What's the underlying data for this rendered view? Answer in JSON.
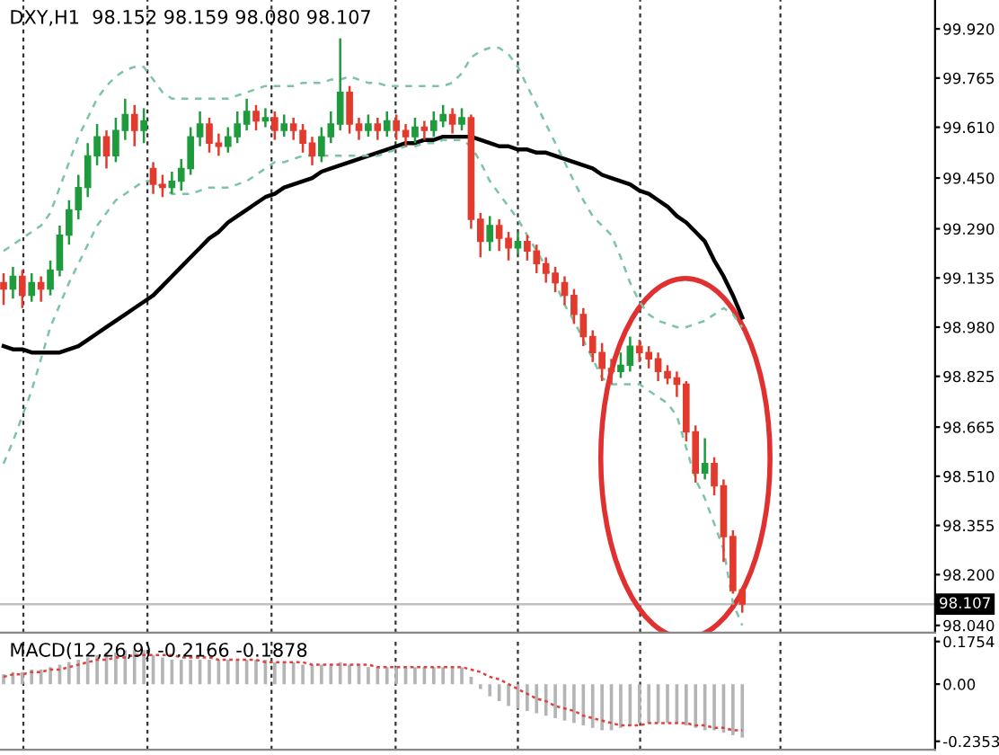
{
  "chart_data": [
    {
      "type": "candlestick",
      "title": "DXY,H1  98.152 98.159 98.080 98.107",
      "categories": [
        null,
        null,
        null,
        null,
        null,
        null,
        null,
        null,
        null,
        null,
        null,
        null,
        null,
        null,
        null,
        null,
        null,
        null,
        null,
        null,
        null,
        null,
        null,
        null,
        null,
        null,
        null,
        null,
        null,
        null,
        null,
        null,
        null,
        null,
        null,
        null,
        null,
        null,
        null,
        null,
        null,
        null,
        null,
        null,
        null,
        null,
        null,
        null,
        null,
        null,
        null,
        null,
        null,
        null,
        null,
        null,
        null,
        null,
        null,
        null,
        null,
        null,
        null,
        null,
        null,
        null,
        null,
        null,
        null,
        null,
        null,
        null,
        null,
        null,
        null,
        null,
        null,
        null,
        null,
        null
      ],
      "ohlc": [
        [
          99.12,
          99.15,
          99.05,
          99.1
        ],
        [
          99.1,
          99.17,
          99.07,
          99.14
        ],
        [
          99.14,
          99.16,
          99.04,
          99.08
        ],
        [
          99.08,
          99.15,
          99.06,
          99.12
        ],
        [
          99.12,
          99.14,
          99.06,
          99.1
        ],
        [
          99.1,
          99.19,
          99.08,
          99.16
        ],
        [
          99.16,
          99.3,
          99.14,
          99.27
        ],
        [
          99.27,
          99.38,
          99.24,
          99.35
        ],
        [
          99.35,
          99.46,
          99.32,
          99.42
        ],
        [
          99.42,
          99.56,
          99.39,
          99.52
        ],
        [
          99.52,
          99.62,
          99.49,
          99.58
        ],
        [
          99.58,
          99.6,
          99.48,
          99.52
        ],
        [
          99.52,
          99.64,
          99.5,
          99.6
        ],
        [
          99.6,
          99.7,
          99.57,
          99.65
        ],
        [
          99.65,
          99.68,
          99.55,
          99.6
        ],
        [
          99.6,
          99.67,
          99.56,
          99.63
        ],
        [
          99.48,
          99.5,
          99.4,
          99.43
        ],
        [
          99.43,
          99.46,
          99.39,
          99.42
        ],
        [
          99.42,
          99.47,
          99.4,
          99.44
        ],
        [
          99.44,
          99.51,
          99.41,
          99.48
        ],
        [
          99.48,
          99.61,
          99.46,
          99.58
        ],
        [
          99.58,
          99.66,
          99.55,
          99.62
        ],
        [
          99.62,
          99.64,
          99.53,
          99.56
        ],
        [
          99.56,
          99.59,
          99.52,
          99.55
        ],
        [
          99.55,
          99.61,
          99.53,
          99.58
        ],
        [
          99.58,
          99.66,
          99.56,
          99.62
        ],
        [
          99.62,
          99.7,
          99.6,
          99.66
        ],
        [
          99.66,
          99.68,
          99.6,
          99.63
        ],
        [
          99.63,
          99.67,
          99.61,
          99.64
        ],
        [
          99.64,
          99.66,
          99.57,
          99.6
        ],
        [
          99.6,
          99.65,
          99.58,
          99.62
        ],
        [
          99.62,
          99.64,
          99.57,
          99.6
        ],
        [
          99.6,
          99.62,
          99.53,
          99.56
        ],
        [
          99.56,
          99.58,
          99.49,
          99.52
        ],
        [
          99.52,
          99.61,
          99.5,
          99.58
        ],
        [
          99.58,
          99.66,
          99.56,
          99.62
        ],
        [
          99.62,
          99.89,
          99.6,
          99.72
        ],
        [
          99.72,
          99.74,
          99.59,
          99.62
        ],
        [
          99.62,
          99.64,
          99.57,
          99.6
        ],
        [
          99.6,
          99.65,
          99.58,
          99.62
        ],
        [
          99.62,
          99.64,
          99.57,
          99.6
        ],
        [
          99.6,
          99.66,
          99.58,
          99.63
        ],
        [
          99.63,
          99.65,
          99.57,
          99.6
        ],
        [
          99.6,
          99.62,
          99.55,
          99.58
        ],
        [
          99.58,
          99.64,
          99.56,
          99.61
        ],
        [
          99.61,
          99.63,
          99.57,
          99.6
        ],
        [
          99.6,
          99.66,
          99.58,
          99.63
        ],
        [
          99.63,
          99.68,
          99.61,
          99.65
        ],
        [
          99.65,
          99.67,
          99.59,
          99.62
        ],
        [
          99.62,
          99.67,
          99.6,
          99.64
        ],
        [
          99.64,
          99.65,
          99.29,
          99.32
        ],
        [
          99.32,
          99.34,
          99.2,
          99.25
        ],
        [
          99.25,
          99.33,
          99.22,
          99.3
        ],
        [
          99.3,
          99.32,
          99.22,
          99.26
        ],
        [
          99.26,
          99.28,
          99.19,
          99.23
        ],
        [
          99.23,
          99.28,
          99.21,
          99.25
        ],
        [
          99.25,
          99.27,
          99.19,
          99.22
        ],
        [
          99.22,
          99.24,
          99.15,
          99.18
        ],
        [
          99.18,
          99.2,
          99.12,
          99.15
        ],
        [
          99.15,
          99.17,
          99.09,
          99.12
        ],
        [
          99.12,
          99.14,
          99.05,
          99.08
        ],
        [
          99.08,
          99.1,
          98.99,
          99.02
        ],
        [
          99.02,
          99.04,
          98.92,
          98.95
        ],
        [
          98.95,
          98.97,
          98.87,
          98.9
        ],
        [
          98.9,
          98.93,
          98.81,
          98.85
        ],
        [
          98.85,
          98.88,
          98.8,
          98.84
        ],
        [
          98.84,
          98.9,
          98.82,
          98.86
        ],
        [
          98.86,
          98.95,
          98.84,
          98.92
        ],
        [
          98.92,
          98.94,
          98.87,
          98.9
        ],
        [
          98.9,
          98.92,
          98.85,
          98.88
        ],
        [
          98.88,
          98.9,
          98.81,
          98.84
        ],
        [
          98.84,
          98.86,
          98.8,
          98.82
        ],
        [
          98.82,
          98.84,
          98.76,
          98.8
        ],
        [
          98.8,
          98.81,
          98.62,
          98.65
        ],
        [
          98.65,
          98.67,
          98.49,
          98.52
        ],
        [
          98.52,
          98.63,
          98.5,
          98.55
        ],
        [
          98.55,
          98.57,
          98.45,
          98.48
        ],
        [
          98.48,
          98.5,
          98.24,
          98.32
        ],
        [
          98.32,
          98.34,
          98.14,
          98.15
        ],
        [
          98.152,
          98.159,
          98.08,
          98.107
        ]
      ],
      "colors": [
        "#e23b2e",
        "#1e9b3c",
        "#e23b2e",
        "#1e9b3c",
        "#e23b2e",
        "#1e9b3c",
        "#1e9b3c",
        "#1e9b3c",
        "#1e9b3c",
        "#1e9b3c",
        "#1e9b3c",
        "#e23b2e",
        "#1e9b3c",
        "#1e9b3c",
        "#e23b2e",
        "#1e9b3c",
        "#e23b2e",
        "#e23b2e",
        "#1e9b3c",
        "#1e9b3c",
        "#1e9b3c",
        "#1e9b3c",
        "#e23b2e",
        "#e23b2e",
        "#1e9b3c",
        "#1e9b3c",
        "#1e9b3c",
        "#e23b2e",
        "#1e9b3c",
        "#e23b2e",
        "#1e9b3c",
        "#e23b2e",
        "#e23b2e",
        "#e23b2e",
        "#1e9b3c",
        "#1e9b3c",
        "#1e9b3c",
        "#e23b2e",
        "#e23b2e",
        "#1e9b3c",
        "#e23b2e",
        "#1e9b3c",
        "#e23b2e",
        "#e23b2e",
        "#1e9b3c",
        "#e23b2e",
        "#1e9b3c",
        "#1e9b3c",
        "#e23b2e",
        "#1e9b3c",
        "#e23b2e",
        "#e23b2e",
        "#1e9b3c",
        "#e23b2e",
        "#e23b2e",
        "#1e9b3c",
        "#e23b2e",
        "#e23b2e",
        "#e23b2e",
        "#e23b2e",
        "#e23b2e",
        "#e23b2e",
        "#e23b2e",
        "#e23b2e",
        "#e23b2e",
        "#e23b2e",
        "#1e9b3c",
        "#1e9b3c",
        "#e23b2e",
        "#e23b2e",
        "#e23b2e",
        "#e23b2e",
        "#e23b2e",
        "#e23b2e",
        "#e23b2e",
        "#1e9b3c",
        "#e23b2e",
        "#e23b2e",
        "#e23b2e",
        "#e23b2e"
      ],
      "series": [
        {
          "type": "line",
          "color": "#000000",
          "line_style": "solid",
          "values": [
            98.92,
            98.91,
            98.91,
            98.9,
            98.9,
            98.9,
            98.9,
            98.91,
            98.92,
            98.94,
            98.96,
            98.98,
            99.0,
            99.02,
            99.04,
            99.06,
            99.08,
            99.11,
            99.14,
            99.17,
            99.2,
            99.23,
            99.26,
            99.28,
            99.31,
            99.33,
            99.35,
            99.37,
            99.39,
            99.4,
            99.42,
            99.43,
            99.44,
            99.45,
            99.47,
            99.48,
            99.49,
            99.5,
            99.51,
            99.52,
            99.53,
            99.54,
            99.55,
            99.56,
            99.56,
            99.57,
            99.57,
            99.58,
            99.58,
            99.58,
            99.58,
            99.57,
            99.56,
            99.55,
            99.55,
            99.54,
            99.54,
            99.53,
            99.53,
            99.52,
            99.51,
            99.5,
            99.49,
            99.48,
            99.46,
            99.45,
            99.44,
            99.43,
            99.41,
            99.4,
            99.38,
            99.36,
            99.33,
            99.31,
            99.28,
            99.25,
            99.19,
            99.14,
            99.08,
            99.01
          ]
        },
        {
          "type": "line",
          "color": "#7cc4a4",
          "line_style": "dashed",
          "values": [
            99.22,
            99.24,
            99.26,
            99.28,
            99.3,
            99.34,
            99.42,
            99.5,
            99.58,
            99.64,
            99.7,
            99.74,
            99.77,
            99.79,
            99.8,
            99.8,
            99.76,
            99.72,
            99.7,
            99.7,
            99.7,
            99.7,
            99.7,
            99.7,
            99.7,
            99.71,
            99.72,
            99.73,
            99.74,
            99.74,
            99.74,
            99.74,
            99.75,
            99.75,
            99.75,
            99.76,
            99.76,
            99.77,
            99.76,
            99.75,
            99.75,
            99.74,
            99.74,
            99.74,
            99.74,
            99.74,
            99.74,
            99.74,
            99.75,
            99.78,
            99.83,
            99.85,
            99.86,
            99.86,
            99.84,
            99.8,
            99.74,
            99.68,
            99.62,
            99.56,
            99.5,
            99.44,
            99.38,
            99.33,
            99.3,
            99.27,
            99.2,
            99.12,
            99.06,
            99.02,
            99.0,
            98.99,
            98.98,
            98.98,
            98.99,
            99.0,
            99.02,
            99.04,
            99.02,
            98.98
          ]
        },
        {
          "type": "line",
          "color": "#7cc4a4",
          "line_style": "dashed",
          "values": [
            98.55,
            98.62,
            98.7,
            98.78,
            98.88,
            98.98,
            99.05,
            99.12,
            99.18,
            99.24,
            99.3,
            99.34,
            99.38,
            99.4,
            99.42,
            99.44,
            99.44,
            99.42,
            99.4,
            99.4,
            99.4,
            99.41,
            99.42,
            99.42,
            99.42,
            99.43,
            99.44,
            99.46,
            99.48,
            99.5,
            99.5,
            99.51,
            99.52,
            99.52,
            99.52,
            99.52,
            99.52,
            99.52,
            99.52,
            99.52,
            99.52,
            99.53,
            99.54,
            99.55,
            99.55,
            99.56,
            99.56,
            99.57,
            99.57,
            99.57,
            99.55,
            99.5,
            99.44,
            99.4,
            99.36,
            99.32,
            99.27,
            99.22,
            99.17,
            99.12,
            99.05,
            99.0,
            98.94,
            98.88,
            98.82,
            98.8,
            98.8,
            98.8,
            98.8,
            98.78,
            98.76,
            98.74,
            98.7,
            98.6,
            98.5,
            98.44,
            98.36,
            98.28,
            98.11,
            98.04
          ]
        }
      ],
      "ylim": [
        98.017,
        100.011
      ],
      "yticks": [
        {
          "value": 99.92,
          "label": "99.920"
        },
        {
          "value": 99.765,
          "label": "99.765"
        },
        {
          "value": 99.61,
          "label": "99.610"
        },
        {
          "value": 99.45,
          "label": "99.450"
        },
        {
          "value": 99.29,
          "label": "99.290"
        },
        {
          "value": 99.135,
          "label": "99.135"
        },
        {
          "value": 98.98,
          "label": "98.980"
        },
        {
          "value": 98.825,
          "label": "98.825"
        },
        {
          "value": 98.665,
          "label": "98.665"
        },
        {
          "value": 98.51,
          "label": "98.510"
        },
        {
          "value": 98.355,
          "label": "98.355"
        },
        {
          "value": 98.2,
          "label": "98.200"
        },
        {
          "value": 98.04,
          "label": "98.040"
        }
      ],
      "ref_lines": [
        {
          "axis": "y",
          "value": 98.107,
          "label": "98.107",
          "color": "#c0c0c0"
        }
      ],
      "tick_labels": "y",
      "grid": "x"
    },
    {
      "type": "bar",
      "title": "MACD(12,26,9) -0.2166 -0.1878",
      "categories": [
        null,
        null,
        null,
        null,
        null,
        null,
        null,
        null,
        null,
        null,
        null,
        null,
        null,
        null,
        null,
        null,
        null,
        null,
        null,
        null,
        null,
        null,
        null,
        null,
        null,
        null,
        null,
        null,
        null,
        null,
        null,
        null,
        null,
        null,
        null,
        null,
        null,
        null,
        null,
        null,
        null,
        null,
        null,
        null,
        null,
        null,
        null,
        null,
        null,
        null,
        null,
        null,
        null,
        null,
        null,
        null,
        null,
        null,
        null,
        null,
        null,
        null,
        null,
        null,
        null,
        null,
        null,
        null,
        null,
        null,
        null,
        null,
        null,
        null,
        null,
        null,
        null,
        null,
        null,
        null
      ],
      "series": [
        {
          "type": "bar",
          "color": "#b4b4b4",
          "values": [
            0.04,
            0.05,
            0.05,
            0.06,
            0.06,
            0.07,
            0.08,
            0.09,
            0.1,
            0.11,
            0.12,
            0.13,
            0.13,
            0.14,
            0.14,
            0.14,
            0.12,
            0.11,
            0.1,
            0.1,
            0.1,
            0.1,
            0.1,
            0.1,
            0.1,
            0.1,
            0.1,
            0.1,
            0.1,
            0.09,
            0.09,
            0.09,
            0.08,
            0.08,
            0.08,
            0.08,
            0.09,
            0.08,
            0.08,
            0.07,
            0.07,
            0.07,
            0.07,
            0.07,
            0.07,
            0.07,
            0.07,
            0.07,
            0.07,
            0.07,
            0.03,
            -0.02,
            -0.05,
            -0.07,
            -0.09,
            -0.1,
            -0.11,
            -0.12,
            -0.13,
            -0.14,
            -0.15,
            -0.16,
            -0.17,
            -0.18,
            -0.19,
            -0.19,
            -0.18,
            -0.17,
            -0.16,
            -0.16,
            -0.16,
            -0.16,
            -0.16,
            -0.17,
            -0.18,
            -0.19,
            -0.19,
            -0.2,
            -0.21,
            -0.22
          ]
        },
        {
          "type": "line",
          "color": "#e04040",
          "line_style": "dotted",
          "values": [
            0.03,
            0.04,
            0.04,
            0.05,
            0.05,
            0.06,
            0.06,
            0.07,
            0.08,
            0.09,
            0.1,
            0.1,
            0.11,
            0.11,
            0.12,
            0.12,
            0.12,
            0.12,
            0.12,
            0.11,
            0.11,
            0.11,
            0.11,
            0.1,
            0.1,
            0.1,
            0.1,
            0.1,
            0.09,
            0.09,
            0.09,
            0.09,
            0.09,
            0.08,
            0.08,
            0.08,
            0.08,
            0.08,
            0.08,
            0.08,
            0.07,
            0.07,
            0.07,
            0.07,
            0.07,
            0.07,
            0.07,
            0.07,
            0.07,
            0.07,
            0.06,
            0.05,
            0.03,
            0.02,
            0.0,
            -0.02,
            -0.04,
            -0.06,
            -0.07,
            -0.09,
            -0.1,
            -0.11,
            -0.13,
            -0.14,
            -0.15,
            -0.16,
            -0.17,
            -0.17,
            -0.17,
            -0.16,
            -0.16,
            -0.16,
            -0.16,
            -0.16,
            -0.17,
            -0.17,
            -0.18,
            -0.18,
            -0.19,
            -0.19
          ]
        }
      ],
      "ylim": [
        -0.27,
        0.19
      ],
      "yticks": [
        0.1754,
        {
          "value": 0,
          "label": "0.00"
        },
        -0.2353
      ],
      "tick_labels": "y",
      "grid": "x"
    }
  ]
}
